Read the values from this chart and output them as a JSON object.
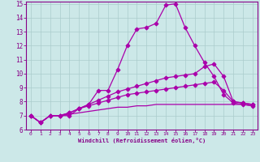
{
  "xlabel": "Windchill (Refroidissement éolien,°C)",
  "x_values": [
    0,
    1,
    2,
    3,
    4,
    5,
    6,
    7,
    8,
    9,
    10,
    11,
    12,
    13,
    14,
    15,
    16,
    17,
    18,
    19,
    20,
    21,
    22,
    23
  ],
  "line1": [
    7.0,
    6.5,
    7.0,
    7.0,
    7.0,
    7.5,
    7.8,
    8.8,
    8.8,
    10.3,
    12.0,
    13.2,
    13.3,
    13.6,
    14.9,
    15.0,
    13.3,
    12.0,
    10.8,
    9.8,
    8.5,
    7.9,
    7.8,
    7.7
  ],
  "line2": [
    7.0,
    6.5,
    7.0,
    7.0,
    7.2,
    7.5,
    7.8,
    8.1,
    8.4,
    8.7,
    8.9,
    9.1,
    9.3,
    9.5,
    9.7,
    9.8,
    9.9,
    10.0,
    10.5,
    10.7,
    9.8,
    8.0,
    7.9,
    7.8
  ],
  "line3": [
    7.0,
    6.5,
    7.0,
    7.0,
    7.2,
    7.5,
    7.7,
    7.9,
    8.1,
    8.3,
    8.5,
    8.6,
    8.7,
    8.8,
    8.9,
    9.0,
    9.1,
    9.2,
    9.3,
    9.4,
    8.8,
    8.0,
    7.9,
    7.8
  ],
  "line4": [
    7.0,
    6.5,
    7.0,
    7.0,
    7.1,
    7.2,
    7.3,
    7.4,
    7.5,
    7.6,
    7.6,
    7.7,
    7.7,
    7.8,
    7.8,
    7.8,
    7.8,
    7.8,
    7.8,
    7.8,
    7.8,
    7.8,
    7.8,
    7.7
  ],
  "ylim": [
    6,
    15
  ],
  "xlim": [
    -0.5,
    23.5
  ],
  "line_color": "#aa00aa",
  "bg_color": "#cce8e8",
  "grid_color": "#aacccc",
  "tick_color": "#880088",
  "label_color": "#880088",
  "marker": "D"
}
